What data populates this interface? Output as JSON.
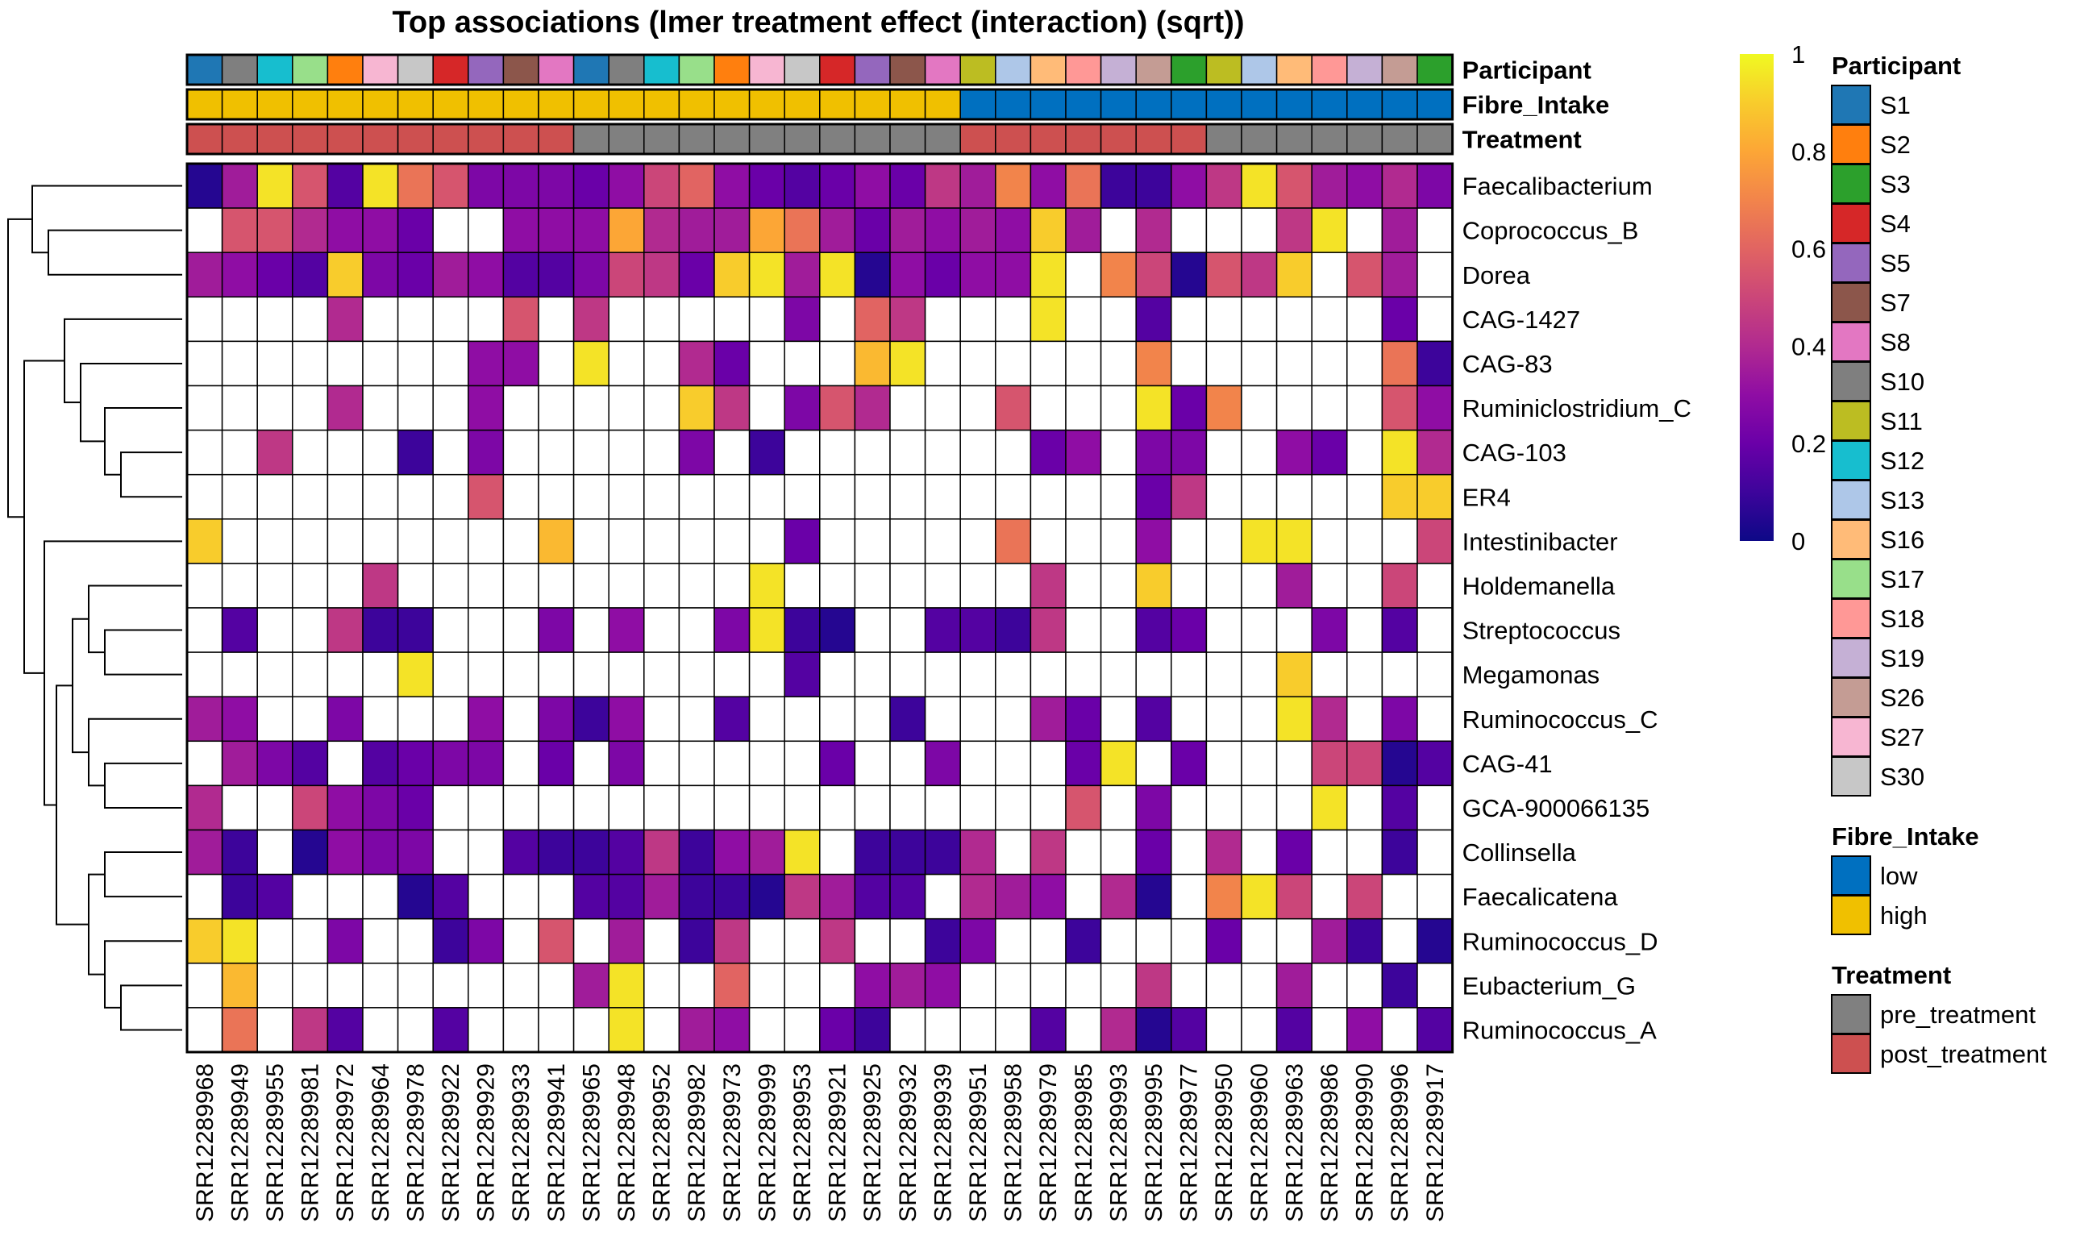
{
  "chart_data": {
    "type": "heatmap",
    "title": "Top associations (lmer treatment effect (interaction) (sqrt))",
    "columns": [
      "SRR12289968",
      "SRR12289949",
      "SRR12289955",
      "SRR12289981",
      "SRR12289972",
      "SRR12289964",
      "SRR12289978",
      "SRR12289922",
      "SRR12289929",
      "SRR12289933",
      "SRR12289941",
      "SRR12289965",
      "SRR12289948",
      "SRR12289952",
      "SRR12289982",
      "SRR12289973",
      "SRR12289999",
      "SRR12289953",
      "SRR12289921",
      "SRR12289925",
      "SRR12289932",
      "SRR12289939",
      "SRR12289951",
      "SRR12289958",
      "SRR12289979",
      "SRR12289985",
      "SRR12289993",
      "SRR12289995",
      "SRR12289977",
      "SRR12289950",
      "SRR12289960",
      "SRR12289963",
      "SRR12289986",
      "SRR12289990",
      "SRR12289996",
      "SRR12289917"
    ],
    "rows": [
      "Faecalibacterium",
      "Coprococcus_B",
      "Dorea",
      "CAG-1427",
      "CAG-83",
      "Ruminiclostridium_C",
      "CAG-103",
      "ER4",
      "Intestinibacter",
      "Holdemanella",
      "Streptococcus",
      "Megamonas",
      "Ruminococcus_C",
      "CAG-41",
      "GCA-900066135",
      "Collinsella",
      "Faecalicatena",
      "Ruminococcus_D",
      "Eubacterium_G",
      "Ruminococcus_A"
    ],
    "values": [
      [
        0.05,
        0.35,
        0.95,
        0.55,
        0.15,
        0.95,
        0.65,
        0.55,
        0.25,
        0.25,
        0.25,
        0.2,
        0.3,
        0.5,
        0.6,
        0.3,
        0.2,
        0.15,
        0.2,
        0.3,
        0.2,
        0.45,
        0.35,
        0.7,
        0.3,
        0.65,
        0.1,
        0.1,
        0.3,
        0.45,
        0.95,
        0.55,
        0.35,
        0.3,
        0.4,
        0.25
      ],
      [
        null,
        0.55,
        0.55,
        0.4,
        0.3,
        0.3,
        0.2,
        null,
        null,
        0.3,
        0.3,
        0.3,
        0.8,
        0.4,
        0.35,
        0.35,
        0.8,
        0.65,
        0.35,
        0.2,
        0.35,
        0.3,
        0.35,
        0.3,
        0.9,
        0.35,
        null,
        0.4,
        null,
        null,
        null,
        0.45,
        0.95,
        null,
        0.35,
        null
      ],
      [
        0.35,
        0.3,
        0.2,
        0.15,
        0.9,
        0.25,
        0.2,
        0.35,
        0.3,
        0.15,
        0.15,
        0.25,
        0.5,
        0.45,
        0.2,
        0.9,
        0.95,
        0.35,
        0.95,
        0.05,
        0.3,
        0.2,
        0.3,
        0.3,
        0.95,
        null,
        0.7,
        0.5,
        0.05,
        0.55,
        0.45,
        0.9,
        null,
        0.55,
        0.35,
        null
      ],
      [
        null,
        null,
        null,
        null,
        0.4,
        null,
        null,
        null,
        null,
        0.55,
        null,
        0.45,
        null,
        null,
        null,
        null,
        null,
        0.25,
        null,
        0.6,
        0.45,
        null,
        null,
        null,
        0.95,
        null,
        null,
        0.15,
        null,
        null,
        null,
        null,
        null,
        null,
        0.2,
        null
      ],
      [
        null,
        null,
        null,
        null,
        null,
        null,
        null,
        null,
        0.3,
        0.3,
        null,
        0.95,
        null,
        null,
        0.4,
        0.2,
        null,
        null,
        null,
        0.85,
        0.95,
        null,
        null,
        null,
        null,
        null,
        null,
        0.7,
        null,
        null,
        null,
        null,
        null,
        null,
        0.65,
        0.1
      ],
      [
        null,
        null,
        null,
        null,
        0.4,
        null,
        null,
        null,
        0.3,
        null,
        null,
        null,
        null,
        null,
        0.9,
        0.45,
        null,
        0.25,
        0.55,
        0.4,
        null,
        null,
        null,
        0.55,
        null,
        null,
        null,
        0.95,
        0.2,
        0.7,
        null,
        null,
        null,
        null,
        0.55,
        0.3
      ],
      [
        null,
        null,
        0.45,
        null,
        null,
        null,
        0.1,
        null,
        0.25,
        null,
        null,
        null,
        null,
        null,
        0.25,
        null,
        0.1,
        null,
        null,
        null,
        null,
        null,
        null,
        null,
        0.2,
        0.3,
        null,
        0.25,
        0.25,
        null,
        null,
        0.3,
        0.2,
        null,
        0.95,
        0.4
      ],
      [
        null,
        null,
        null,
        null,
        null,
        null,
        null,
        null,
        0.55,
        null,
        null,
        null,
        null,
        null,
        null,
        null,
        null,
        null,
        null,
        null,
        null,
        null,
        null,
        null,
        null,
        null,
        null,
        0.2,
        0.45,
        null,
        null,
        null,
        null,
        null,
        0.9,
        0.9
      ],
      [
        0.9,
        null,
        null,
        null,
        null,
        null,
        null,
        null,
        null,
        null,
        0.85,
        null,
        null,
        null,
        null,
        null,
        null,
        0.2,
        null,
        null,
        null,
        null,
        null,
        0.65,
        null,
        null,
        null,
        0.3,
        null,
        null,
        0.95,
        0.95,
        null,
        null,
        null,
        0.5
      ],
      [
        null,
        null,
        null,
        null,
        null,
        0.45,
        null,
        null,
        null,
        null,
        null,
        null,
        null,
        null,
        null,
        null,
        0.95,
        null,
        null,
        null,
        null,
        null,
        null,
        null,
        0.45,
        null,
        null,
        0.9,
        null,
        null,
        null,
        0.35,
        null,
        null,
        0.5,
        null
      ],
      [
        null,
        0.15,
        null,
        null,
        0.45,
        0.1,
        0.1,
        null,
        null,
        null,
        0.25,
        null,
        0.3,
        null,
        null,
        0.25,
        0.95,
        0.1,
        0.05,
        null,
        null,
        0.15,
        0.15,
        0.1,
        0.45,
        null,
        null,
        0.15,
        0.2,
        null,
        null,
        null,
        0.25,
        null,
        0.15,
        null
      ],
      [
        null,
        null,
        null,
        null,
        null,
        null,
        0.95,
        null,
        null,
        null,
        null,
        null,
        null,
        null,
        null,
        null,
        null,
        0.15,
        null,
        null,
        null,
        null,
        null,
        null,
        null,
        null,
        null,
        null,
        null,
        null,
        null,
        0.9,
        null,
        null,
        null,
        null
      ],
      [
        0.35,
        0.3,
        null,
        null,
        0.25,
        null,
        null,
        null,
        0.3,
        null,
        0.25,
        0.1,
        0.3,
        null,
        null,
        0.15,
        null,
        null,
        null,
        null,
        0.1,
        null,
        null,
        null,
        0.35,
        0.2,
        null,
        0.15,
        null,
        null,
        null,
        0.95,
        0.4,
        null,
        0.25,
        null
      ],
      [
        null,
        0.35,
        0.25,
        0.15,
        null,
        0.15,
        0.2,
        0.25,
        0.25,
        null,
        0.2,
        null,
        0.25,
        null,
        null,
        null,
        null,
        null,
        0.2,
        null,
        null,
        0.25,
        null,
        null,
        null,
        0.2,
        0.95,
        null,
        0.2,
        null,
        null,
        null,
        0.5,
        0.5,
        0.05,
        0.15
      ],
      [
        0.4,
        null,
        null,
        0.5,
        0.3,
        0.25,
        0.2,
        null,
        null,
        null,
        null,
        null,
        null,
        null,
        null,
        null,
        null,
        null,
        null,
        null,
        null,
        null,
        null,
        null,
        null,
        0.55,
        null,
        0.25,
        null,
        null,
        null,
        null,
        0.95,
        null,
        0.15,
        null
      ],
      [
        0.35,
        0.1,
        null,
        0.05,
        0.3,
        0.25,
        0.25,
        null,
        null,
        0.15,
        0.1,
        0.1,
        0.15,
        0.45,
        0.1,
        0.3,
        0.35,
        0.95,
        null,
        0.1,
        0.1,
        0.1,
        0.4,
        null,
        0.45,
        null,
        null,
        0.2,
        null,
        0.4,
        null,
        0.2,
        null,
        null,
        0.1,
        null
      ],
      [
        null,
        0.1,
        0.15,
        null,
        null,
        null,
        0.05,
        0.15,
        null,
        null,
        null,
        0.15,
        0.15,
        0.35,
        0.1,
        0.1,
        0.05,
        0.45,
        0.35,
        0.15,
        0.15,
        null,
        0.4,
        0.35,
        0.3,
        null,
        0.4,
        0.05,
        null,
        0.7,
        0.95,
        0.5,
        null,
        0.5,
        null,
        null
      ],
      [
        0.9,
        0.95,
        null,
        null,
        0.25,
        null,
        null,
        0.1,
        0.25,
        null,
        0.55,
        null,
        0.35,
        null,
        0.1,
        0.45,
        null,
        null,
        0.45,
        null,
        null,
        0.1,
        0.25,
        null,
        null,
        0.1,
        null,
        null,
        null,
        0.2,
        null,
        null,
        0.35,
        0.1,
        null,
        0.05
      ],
      [
        null,
        0.85,
        null,
        null,
        null,
        null,
        null,
        null,
        null,
        null,
        null,
        0.35,
        0.95,
        null,
        null,
        0.6,
        null,
        null,
        null,
        0.3,
        0.35,
        0.3,
        null,
        null,
        null,
        null,
        null,
        0.45,
        null,
        null,
        null,
        0.35,
        null,
        null,
        0.1,
        null
      ],
      [
        null,
        0.65,
        null,
        0.45,
        0.15,
        null,
        null,
        0.15,
        null,
        null,
        null,
        null,
        0.95,
        null,
        0.35,
        0.3,
        null,
        null,
        0.2,
        0.1,
        null,
        null,
        null,
        null,
        0.15,
        null,
        0.4,
        0.05,
        0.15,
        null,
        null,
        0.15,
        null,
        0.3,
        null,
        0.15
      ]
    ],
    "colorbar": {
      "min": 0,
      "max": 1,
      "ticks": [
        "0",
        "0.2",
        "0.4",
        "0.6",
        "0.8",
        "1"
      ],
      "colors": [
        "#0d0887",
        "#3d049b",
        "#6a00a8",
        "#8f0da4",
        "#b12a90",
        "#cb4679",
        "#e16462",
        "#f2844b",
        "#fca636",
        "#f8cc2c",
        "#f0f921"
      ]
    },
    "annotation_rows": [
      {
        "name": "Participant",
        "values": [
          "S1",
          "S10",
          "S12",
          "S17",
          "S2",
          "S27",
          "S30",
          "S4",
          "S5",
          "S7",
          "S8",
          "S1",
          "S10",
          "S12",
          "S17",
          "S2",
          "S27",
          "S30",
          "S4",
          "S5",
          "S7",
          "S8",
          "S11",
          "S13",
          "S16",
          "S18",
          "S19",
          "S26",
          "S3",
          "S11",
          "S13",
          "S16",
          "S18",
          "S19",
          "S26",
          "S3"
        ]
      },
      {
        "name": "Fibre_Intake",
        "values": [
          "high",
          "high",
          "high",
          "high",
          "high",
          "high",
          "high",
          "high",
          "high",
          "high",
          "high",
          "high",
          "high",
          "high",
          "high",
          "high",
          "high",
          "high",
          "high",
          "high",
          "high",
          "high",
          "low",
          "low",
          "low",
          "low",
          "low",
          "low",
          "low",
          "low",
          "low",
          "low",
          "low",
          "low",
          "low",
          "low"
        ]
      },
      {
        "name": "Treatment",
        "values": [
          "post_treatment",
          "post_treatment",
          "post_treatment",
          "post_treatment",
          "post_treatment",
          "post_treatment",
          "post_treatment",
          "post_treatment",
          "post_treatment",
          "post_treatment",
          "post_treatment",
          "pre_treatment",
          "pre_treatment",
          "pre_treatment",
          "pre_treatment",
          "pre_treatment",
          "pre_treatment",
          "pre_treatment",
          "pre_treatment",
          "pre_treatment",
          "pre_treatment",
          "pre_treatment",
          "post_treatment",
          "post_treatment",
          "post_treatment",
          "post_treatment",
          "post_treatment",
          "post_treatment",
          "post_treatment",
          "pre_treatment",
          "pre_treatment",
          "pre_treatment",
          "pre_treatment",
          "pre_treatment",
          "pre_treatment",
          "pre_treatment"
        ]
      }
    ],
    "legends": [
      {
        "title": "Participant",
        "items": [
          {
            "label": "S1",
            "color": "#1f77b4"
          },
          {
            "label": "S2",
            "color": "#ff7f0e"
          },
          {
            "label": "S3",
            "color": "#2ca02c"
          },
          {
            "label": "S4",
            "color": "#d62728"
          },
          {
            "label": "S5",
            "color": "#9467bd"
          },
          {
            "label": "S7",
            "color": "#8c564b"
          },
          {
            "label": "S8",
            "color": "#e377c2"
          },
          {
            "label": "S10",
            "color": "#7f7f7f"
          },
          {
            "label": "S11",
            "color": "#bcbd22"
          },
          {
            "label": "S12",
            "color": "#17becf"
          },
          {
            "label": "S13",
            "color": "#aec7e8"
          },
          {
            "label": "S16",
            "color": "#ffbb78"
          },
          {
            "label": "S17",
            "color": "#98df8a"
          },
          {
            "label": "S18",
            "color": "#ff9896"
          },
          {
            "label": "S19",
            "color": "#c5b0d5"
          },
          {
            "label": "S26",
            "color": "#c49c94"
          },
          {
            "label": "S27",
            "color": "#f7b6d2"
          },
          {
            "label": "S30",
            "color": "#c7c7c7"
          }
        ]
      },
      {
        "title": "Fibre_Intake",
        "items": [
          {
            "label": "low",
            "color": "#0070c0"
          },
          {
            "label": "high",
            "color": "#f0c000"
          }
        ]
      },
      {
        "title": "Treatment",
        "items": [
          {
            "label": "pre_treatment",
            "color": "#808080"
          },
          {
            "label": "post_treatment",
            "color": "#cd5050"
          }
        ]
      }
    ],
    "dendrogram": "rows"
  }
}
